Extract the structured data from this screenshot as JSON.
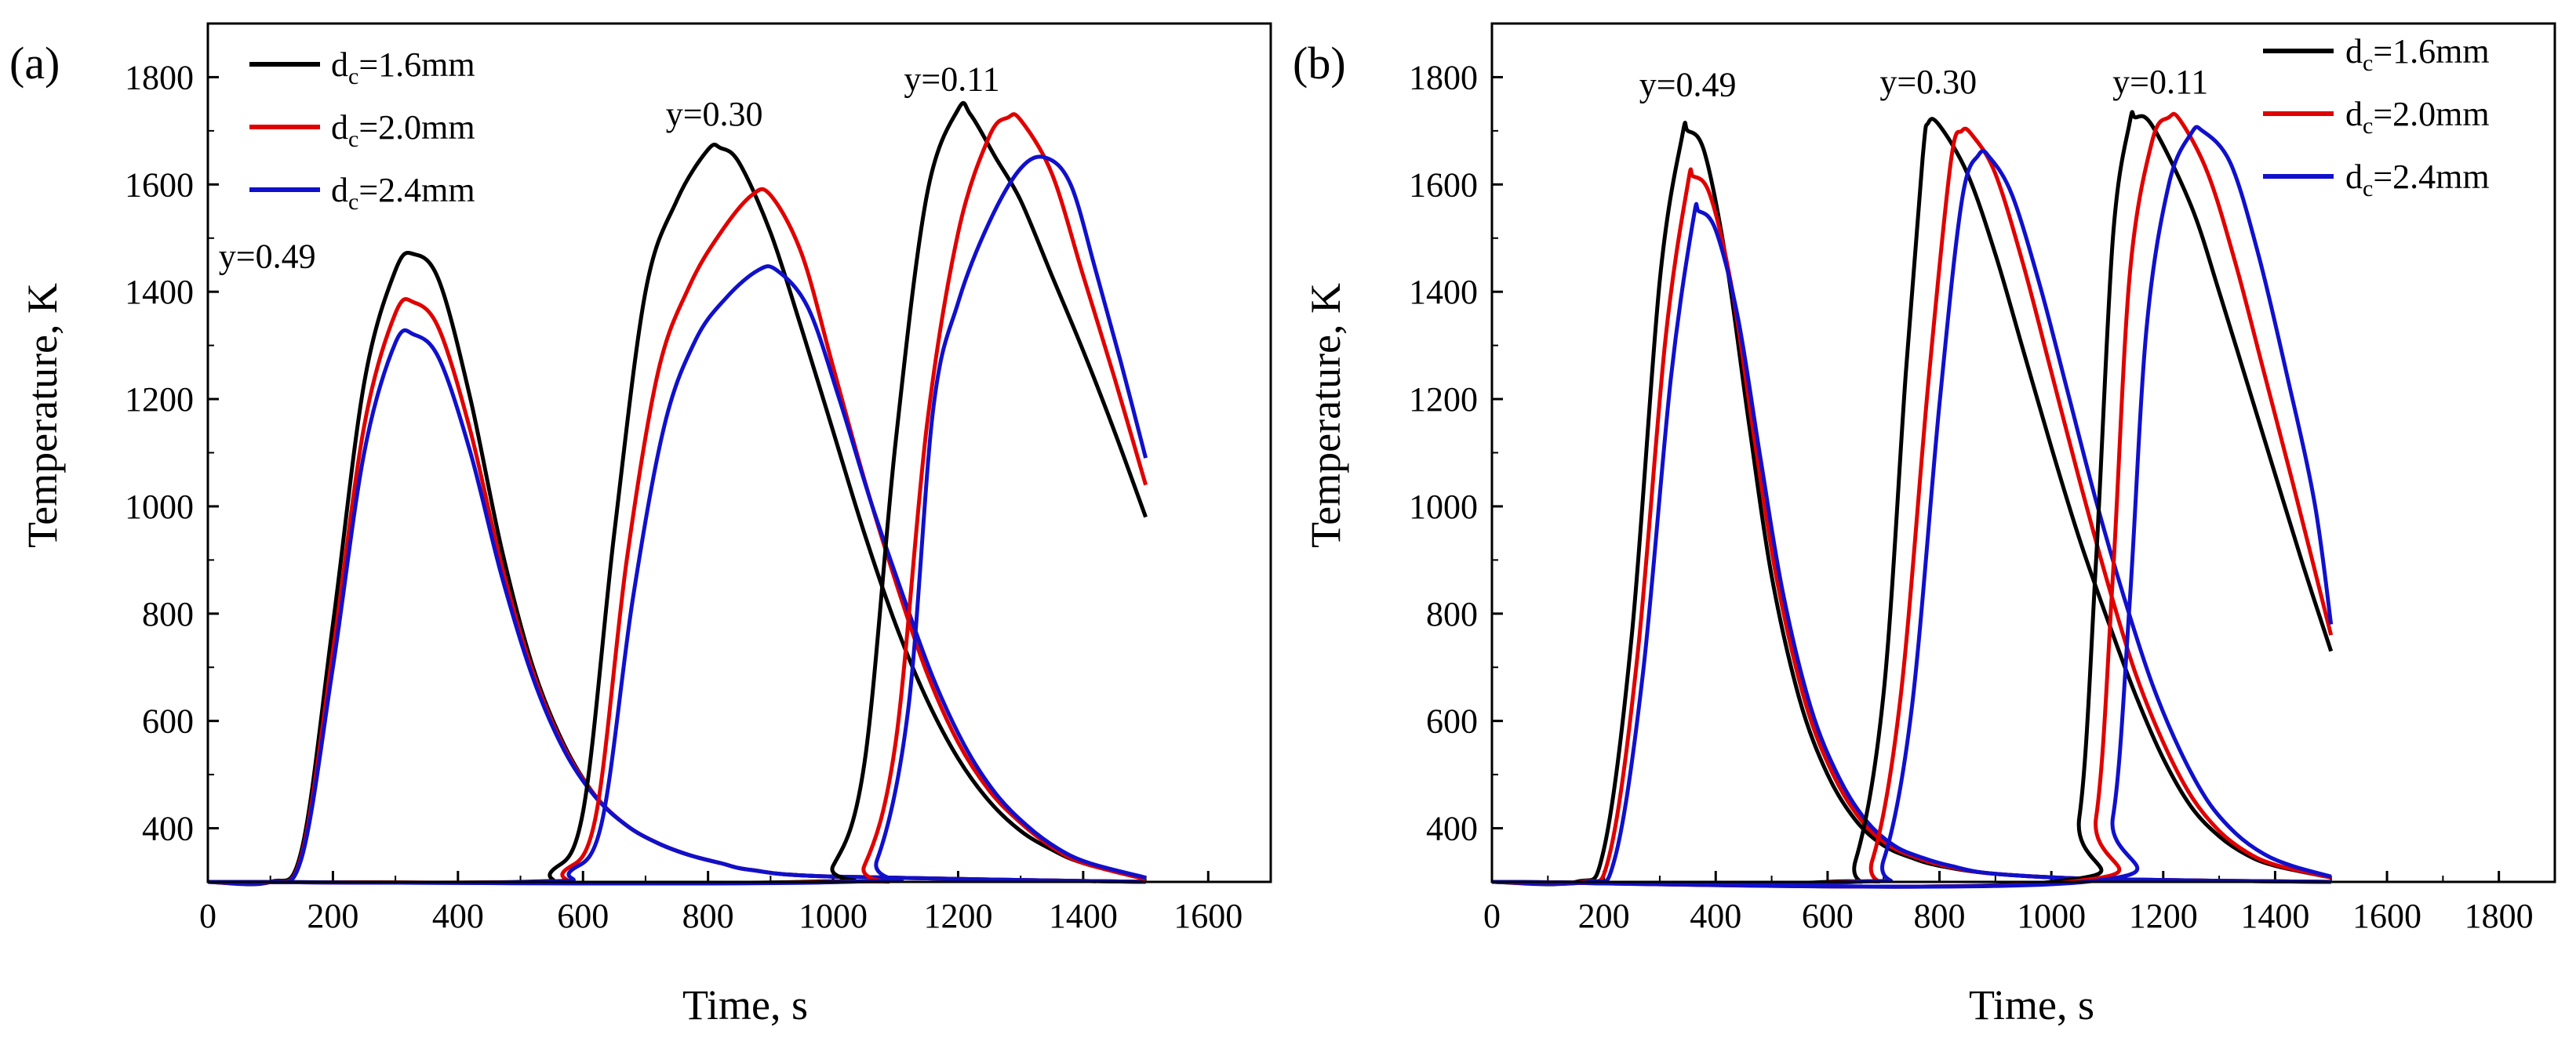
{
  "chart_data": [
    {
      "type": "line",
      "panel_label": "(a)",
      "xlabel": "Time, s",
      "ylabel": "Temperature, K",
      "xlim": [
        0,
        1700
      ],
      "ylim": [
        300,
        1900
      ],
      "xticks": [
        0,
        200,
        400,
        600,
        800,
        1000,
        1200,
        1400,
        1600
      ],
      "yticks": [
        400,
        600,
        800,
        1000,
        1200,
        1400,
        1600,
        1800
      ],
      "legend": {
        "placement": "top-left",
        "entries": [
          {
            "prefix": "d",
            "sub": "c",
            "suffix": "=1.6mm",
            "color": "#000000"
          },
          {
            "prefix": "d",
            "sub": "c",
            "suffix": "=2.0mm",
            "color": "#e00000"
          },
          {
            "prefix": "d",
            "sub": "c",
            "suffix": "=2.4mm",
            "color": "#1010cc"
          }
        ]
      },
      "annotations": [
        {
          "text": "y=0.49",
          "x": 95,
          "y": 1445
        },
        {
          "text": "y=0.30",
          "x": 810,
          "y": 1710
        },
        {
          "text": "y=0.11",
          "x": 1190,
          "y": 1775
        }
      ],
      "series": [
        {
          "name": "d_c=1.6mm y=0.49",
          "color": "#000000",
          "x": [
            0,
            100,
            150,
            200,
            250,
            300,
            330,
            370,
            420,
            470,
            520,
            570,
            620,
            670,
            720,
            770,
            820,
            870,
            1000,
            1500
          ],
          "y": [
            300,
            300,
            360,
            780,
            1230,
            1440,
            1470,
            1420,
            1200,
            920,
            700,
            555,
            460,
            405,
            372,
            350,
            335,
            322,
            310,
            300
          ]
        },
        {
          "name": "d_c=2.0mm y=0.49",
          "color": "#e00000",
          "x": [
            0,
            100,
            150,
            200,
            250,
            300,
            330,
            370,
            420,
            470,
            520,
            570,
            620,
            670,
            720,
            770,
            820,
            870,
            1000,
            1500
          ],
          "y": [
            300,
            300,
            350,
            730,
            1150,
            1360,
            1380,
            1330,
            1140,
            890,
            690,
            550,
            460,
            405,
            372,
            350,
            335,
            322,
            310,
            300
          ]
        },
        {
          "name": "d_c=2.4mm y=0.49",
          "color": "#1010cc",
          "x": [
            0,
            100,
            150,
            200,
            250,
            300,
            330,
            370,
            420,
            470,
            520,
            570,
            620,
            670,
            720,
            770,
            820,
            870,
            1000,
            1500
          ],
          "y": [
            300,
            300,
            345,
            700,
            1100,
            1305,
            1320,
            1275,
            1100,
            870,
            680,
            545,
            458,
            405,
            372,
            350,
            335,
            322,
            310,
            300
          ]
        },
        {
          "name": "d_c=1.6mm y=0.30",
          "color": "#000000",
          "x": [
            0,
            500,
            550,
            600,
            650,
            700,
            750,
            800,
            820,
            850,
            900,
            950,
            1000,
            1050,
            1100,
            1150,
            1200,
            1250,
            1300,
            1350,
            1400,
            1500
          ],
          "y": [
            300,
            300,
            320,
            430,
            950,
            1400,
            1570,
            1665,
            1668,
            1640,
            1510,
            1330,
            1140,
            950,
            780,
            640,
            530,
            450,
            395,
            360,
            335,
            305
          ]
        },
        {
          "name": "d_c=2.0mm y=0.30",
          "color": "#e00000",
          "x": [
            0,
            520,
            570,
            620,
            670,
            720,
            770,
            820,
            870,
            900,
            950,
            1000,
            1050,
            1100,
            1150,
            1200,
            1250,
            1300,
            1350,
            1400,
            1500
          ],
          "y": [
            300,
            300,
            320,
            420,
            900,
            1250,
            1410,
            1510,
            1580,
            1580,
            1470,
            1260,
            1050,
            860,
            690,
            560,
            470,
            410,
            365,
            335,
            305
          ]
        },
        {
          "name": "d_c=2.4mm y=0.30",
          "color": "#1010cc",
          "x": [
            0,
            530,
            580,
            630,
            680,
            730,
            780,
            830,
            880,
            910,
            960,
            1010,
            1060,
            1110,
            1160,
            1210,
            1260,
            1310,
            1360,
            1410,
            1500
          ],
          "y": [
            300,
            300,
            320,
            410,
            830,
            1150,
            1310,
            1390,
            1440,
            1440,
            1370,
            1200,
            1010,
            840,
            680,
            555,
            465,
            405,
            362,
            335,
            308
          ]
        },
        {
          "name": "d_c=1.6mm y=0.11",
          "color": "#000000",
          "x": [
            0,
            950,
            1000,
            1050,
            1100,
            1150,
            1200,
            1220,
            1260,
            1300,
            1350,
            1400,
            1450,
            1500
          ],
          "y": [
            300,
            300,
            330,
            520,
            1120,
            1580,
            1740,
            1730,
            1650,
            1570,
            1430,
            1290,
            1140,
            980
          ]
        },
        {
          "name": "d_c=2.0mm y=0.11",
          "color": "#e00000",
          "x": [
            0,
            1000,
            1050,
            1100,
            1150,
            1200,
            1250,
            1280,
            1300,
            1350,
            1400,
            1450,
            1500
          ],
          "y": [
            300,
            300,
            330,
            560,
            1150,
            1510,
            1690,
            1725,
            1720,
            1620,
            1430,
            1240,
            1040
          ]
        },
        {
          "name": "d_c=2.4mm y=0.11",
          "color": "#1010cc",
          "x": [
            0,
            1020,
            1070,
            1120,
            1160,
            1200,
            1250,
            1300,
            1340,
            1380,
            1420,
            1460,
            1500
          ],
          "y": [
            300,
            300,
            340,
            620,
            1180,
            1380,
            1530,
            1630,
            1650,
            1600,
            1440,
            1270,
            1090
          ]
        }
      ]
    },
    {
      "type": "line",
      "panel_label": "(b)",
      "xlabel": "Time, s",
      "ylabel": "Temperature, K",
      "xlim": [
        0,
        1900
      ],
      "ylim": [
        300,
        1900
      ],
      "xticks": [
        0,
        200,
        400,
        600,
        800,
        1000,
        1200,
        1400,
        1600,
        1800
      ],
      "yticks": [
        400,
        600,
        800,
        1000,
        1200,
        1400,
        1600,
        1800
      ],
      "legend": {
        "placement": "top-right",
        "entries": [
          {
            "prefix": "d",
            "sub": "c",
            "suffix": "=1.6mm",
            "color": "#000000"
          },
          {
            "prefix": "d",
            "sub": "c",
            "suffix": "=2.0mm",
            "color": "#e00000"
          },
          {
            "prefix": "d",
            "sub": "c",
            "suffix": "=2.4mm",
            "color": "#1010cc"
          }
        ]
      },
      "annotations": [
        {
          "text": "y=0.49",
          "x": 350,
          "y": 1765
        },
        {
          "text": "y=0.30",
          "x": 780,
          "y": 1770
        },
        {
          "text": "y=0.11",
          "x": 1195,
          "y": 1770
        }
      ],
      "series": [
        {
          "name": "d_c=1.6mm y=0.49",
          "color": "#000000",
          "x": [
            0,
            150,
            200,
            250,
            300,
            340,
            350,
            380,
            420,
            460,
            500,
            550,
            600,
            650,
            700,
            750,
            800,
            900,
            1100,
            1500
          ],
          "y": [
            300,
            300,
            360,
            760,
            1420,
            1690,
            1700,
            1660,
            1450,
            1150,
            870,
            640,
            500,
            415,
            368,
            345,
            330,
            315,
            305,
            300
          ]
        },
        {
          "name": "d_c=2.0mm y=0.49",
          "color": "#e00000",
          "x": [
            0,
            160,
            210,
            260,
            310,
            350,
            360,
            390,
            430,
            470,
            510,
            560,
            610,
            660,
            710,
            760,
            810,
            900,
            1100,
            1500
          ],
          "y": [
            300,
            300,
            350,
            720,
            1310,
            1600,
            1615,
            1580,
            1400,
            1120,
            860,
            635,
            500,
            415,
            368,
            345,
            330,
            315,
            305,
            300
          ]
        },
        {
          "name": "d_c=2.4mm y=0.49",
          "color": "#1010cc",
          "x": [
            0,
            170,
            220,
            270,
            320,
            360,
            370,
            400,
            440,
            480,
            520,
            570,
            620,
            670,
            720,
            770,
            820,
            900,
            1100,
            1500
          ],
          "y": [
            300,
            300,
            345,
            690,
            1240,
            1535,
            1550,
            1515,
            1350,
            1090,
            840,
            625,
            495,
            413,
            367,
            345,
            330,
            315,
            305,
            300
          ]
        },
        {
          "name": "d_c=1.6mm y=0.30",
          "color": "#000000",
          "x": [
            0,
            600,
            650,
            700,
            740,
            770,
            780,
            800,
            850,
            900,
            950,
            1000,
            1050,
            1100,
            1150,
            1200,
            1250,
            1300,
            1350,
            1400,
            1500
          ],
          "y": [
            300,
            300,
            340,
            650,
            1250,
            1650,
            1715,
            1710,
            1620,
            1470,
            1290,
            1110,
            940,
            790,
            650,
            530,
            440,
            385,
            350,
            330,
            308
          ]
        },
        {
          "name": "d_c=2.0mm y=0.30",
          "color": "#e00000",
          "x": [
            0,
            630,
            680,
            730,
            780,
            820,
            840,
            860,
            900,
            950,
            1000,
            1050,
            1100,
            1150,
            1200,
            1250,
            1300,
            1350,
            1400,
            1500
          ],
          "y": [
            300,
            300,
            340,
            640,
            1230,
            1640,
            1700,
            1690,
            1620,
            1450,
            1250,
            1050,
            860,
            690,
            560,
            460,
            395,
            355,
            332,
            308
          ]
        },
        {
          "name": "d_c=2.4mm y=0.30",
          "color": "#1010cc",
          "x": [
            0,
            650,
            700,
            750,
            800,
            840,
            870,
            890,
            930,
            980,
            1030,
            1080,
            1130,
            1180,
            1230,
            1280,
            1330,
            1380,
            1430,
            1500
          ],
          "y": [
            300,
            300,
            340,
            620,
            1190,
            1570,
            1655,
            1650,
            1580,
            1410,
            1210,
            1010,
            830,
            670,
            545,
            450,
            390,
            352,
            330,
            310
          ]
        },
        {
          "name": "d_c=1.6mm y=0.11",
          "color": "#000000",
          "x": [
            0,
            1000,
            1050,
            1080,
            1110,
            1140,
            1150,
            1180,
            1250,
            1300,
            1350,
            1400,
            1450,
            1500
          ],
          "y": [
            300,
            300,
            420,
            900,
            1500,
            1715,
            1725,
            1710,
            1560,
            1400,
            1230,
            1060,
            890,
            730
          ]
        },
        {
          "name": "d_c=2.0mm y=0.11",
          "color": "#e00000",
          "x": [
            0,
            1030,
            1080,
            1110,
            1140,
            1180,
            1210,
            1230,
            1280,
            1330,
            1380,
            1430,
            1500
          ],
          "y": [
            300,
            300,
            420,
            870,
            1430,
            1680,
            1725,
            1720,
            1620,
            1450,
            1250,
            1050,
            760
          ]
        },
        {
          "name": "d_c=2.4mm y=0.11",
          "color": "#1010cc",
          "x": [
            0,
            1060,
            1110,
            1140,
            1170,
            1210,
            1250,
            1270,
            1320,
            1370,
            1420,
            1470,
            1500
          ],
          "y": [
            300,
            300,
            420,
            820,
            1330,
            1600,
            1695,
            1700,
            1640,
            1470,
            1250,
            1010,
            780
          ]
        }
      ]
    }
  ]
}
